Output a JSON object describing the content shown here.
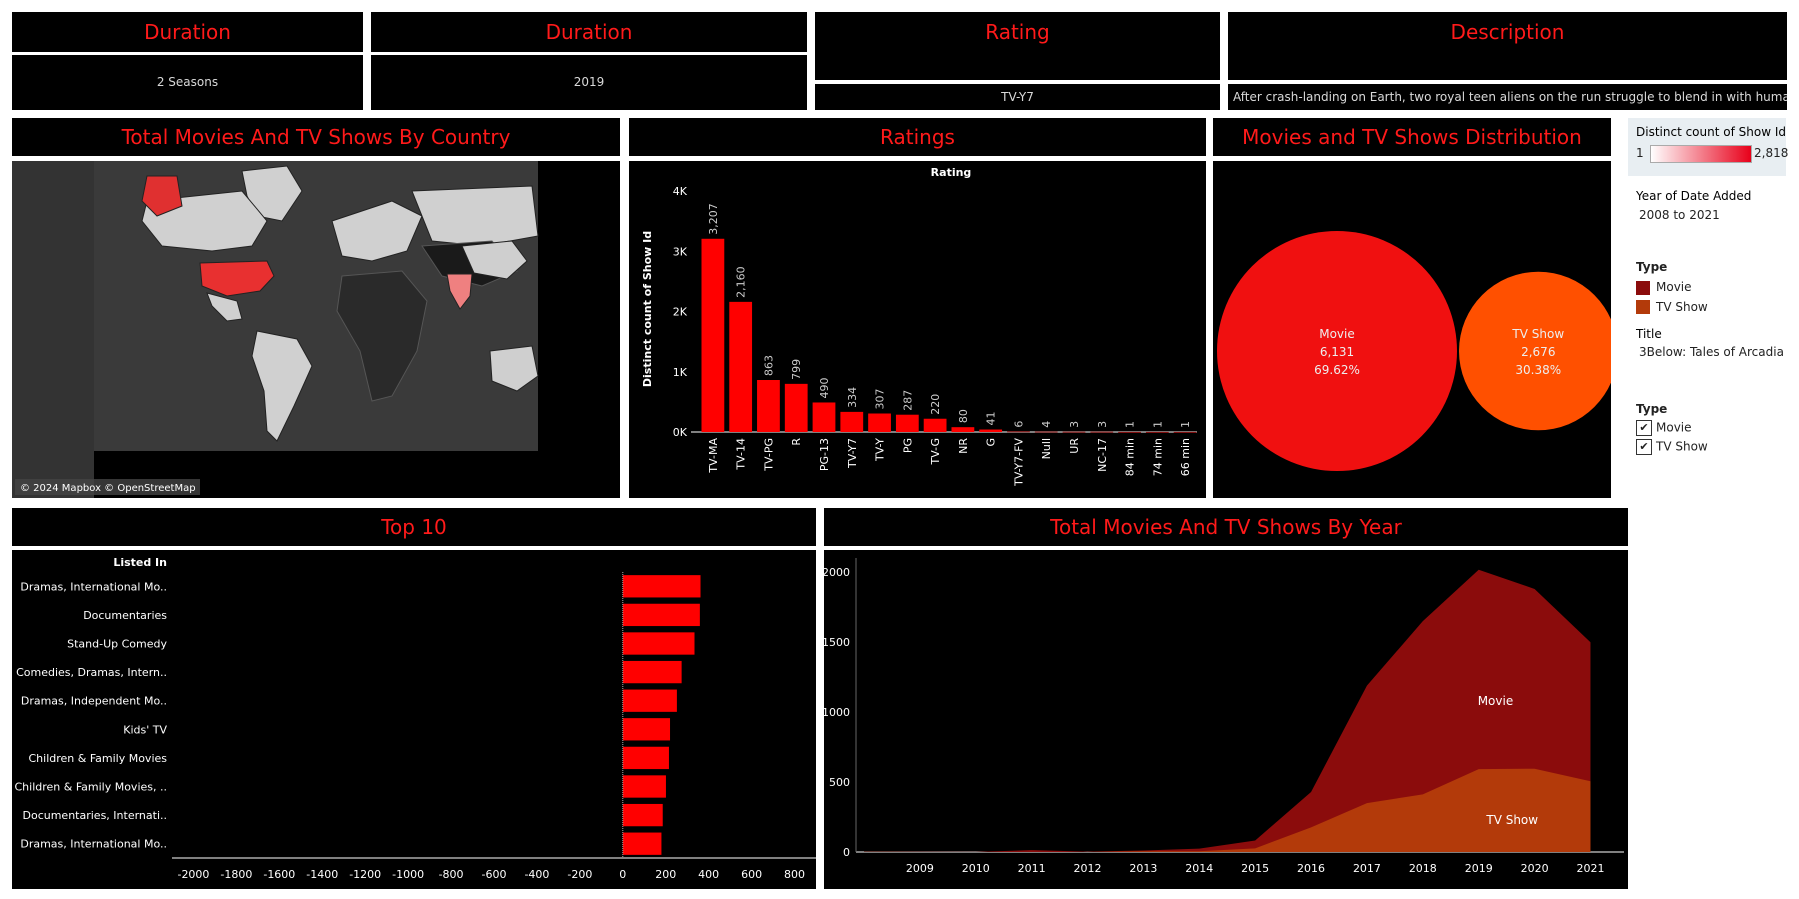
{
  "kpis": {
    "duration1": {
      "title": "Duration",
      "value": "2 Seasons"
    },
    "duration2": {
      "title": "Duration",
      "value": "2019"
    },
    "rating": {
      "title": "Rating",
      "value": "TV-Y7"
    },
    "description": {
      "title": "Description",
      "value": "After crash-landing on Earth, two royal teen aliens on the run struggle to blend in with humans a.."
    }
  },
  "panels": {
    "map_title": "Total Movies And TV Shows By Country",
    "map_credit": "© 2024 Mapbox © OpenStreetMap",
    "ratings_title": "Ratings",
    "dist_title": "Movies and TV Shows Distribution",
    "top10_title": "Top 10",
    "year_title": "Total Movies And TV Shows By Year"
  },
  "sidebar": {
    "distinct_label": "Distinct count of Show Id",
    "distinct_min": "1",
    "distinct_max": "2,818",
    "year_label": "Year of Date Added",
    "year_value": "2008 to 2021",
    "type_label": "Type",
    "type_items": [
      "Movie",
      "TV Show"
    ],
    "title_label": "Title",
    "title_value": "3Below: Tales of Arcadia",
    "filter_label": "Type",
    "filter_items": [
      "Movie",
      "TV Show"
    ],
    "colors": {
      "movie": "#8b0c0c",
      "tvshow": "#b33a0a"
    }
  },
  "chart_data": [
    {
      "type": "bar",
      "title": "Ratings",
      "header": "Rating",
      "ylabel": "Distinct count of Show Id",
      "categories": [
        "TV-MA",
        "TV-14",
        "TV-PG",
        "R",
        "PG-13",
        "TV-Y7",
        "TV-Y",
        "PG",
        "TV-G",
        "NR",
        "G",
        "TV-Y7-FV",
        "Null",
        "UR",
        "NC-17",
        "84 min",
        "74 min",
        "66 min"
      ],
      "values": [
        3207,
        2160,
        863,
        799,
        490,
        334,
        307,
        287,
        220,
        80,
        41,
        6,
        4,
        3,
        3,
        1,
        1,
        1
      ],
      "labels": [
        "3,207",
        "2,160",
        "863",
        "799",
        "490",
        "334",
        "307",
        "287",
        "220",
        "80",
        "41",
        "6",
        "4",
        "3",
        "3",
        "1",
        "1",
        "1"
      ],
      "yticks": [
        "0K",
        "1K",
        "2K",
        "3K",
        "4K"
      ],
      "ylim": [
        0,
        4000
      ],
      "color": "#ff0000"
    },
    {
      "type": "bubble",
      "title": "Movies and TV Shows Distribution",
      "categories": [
        "Movie",
        "TV Show"
      ],
      "values": [
        6131,
        2676
      ],
      "value_labels": [
        "6,131",
        "2,676"
      ],
      "percent_labels": [
        "69.62%",
        "30.38%"
      ],
      "colors": [
        "#f01010",
        "#ff5000"
      ]
    },
    {
      "type": "bar",
      "orientation": "horizontal",
      "title": "Top 10",
      "header": "Listed In",
      "categories": [
        "Dramas, International Mo..",
        "Documentaries",
        "Stand-Up Comedy",
        "Comedies, Dramas, Intern..",
        "Dramas, Independent Mo..",
        "Kids' TV",
        "Children & Family Movies",
        "Children & Family Movies, ..",
        "Documentaries, Internati..",
        "Dramas, International Mo.."
      ],
      "values": [
        362,
        359,
        334,
        274,
        252,
        220,
        215,
        201,
        186,
        180
      ],
      "xlim": [
        -2100,
        900
      ],
      "xticks": [
        -2000,
        -1800,
        -1600,
        -1400,
        -1200,
        -1000,
        -800,
        -600,
        -400,
        -200,
        0,
        200,
        400,
        600,
        800
      ],
      "color": "#ff0000"
    },
    {
      "type": "area",
      "stacked": false,
      "title": "Total Movies And TV Shows By Year",
      "x": [
        2008,
        2009,
        2010,
        2011,
        2012,
        2013,
        2014,
        2015,
        2016,
        2017,
        2018,
        2019,
        2020,
        2021
      ],
      "xticks": [
        2009,
        2010,
        2011,
        2012,
        2013,
        2014,
        2015,
        2016,
        2017,
        2018,
        2019,
        2020,
        2021
      ],
      "ylim": [
        0,
        2100
      ],
      "yticks": [
        0,
        500,
        1000,
        1500,
        2000
      ],
      "series": [
        {
          "name": "Movie",
          "values": [
            1,
            2,
            1,
            13,
            3,
            6,
            19,
            56,
            253,
            839,
            1237,
            1424,
            1284,
            993
          ],
          "total": [
            2,
            2,
            1,
            13,
            3,
            11,
            24,
            82,
            429,
            1188,
            1649,
            2016,
            1879,
            1498
          ],
          "color": "#8b0c0c"
        },
        {
          "name": "TV Show",
          "values": [
            1,
            0,
            0,
            0,
            0,
            5,
            5,
            26,
            176,
            349,
            412,
            592,
            595,
            505
          ],
          "color": "#b33a0a"
        }
      ]
    }
  ]
}
